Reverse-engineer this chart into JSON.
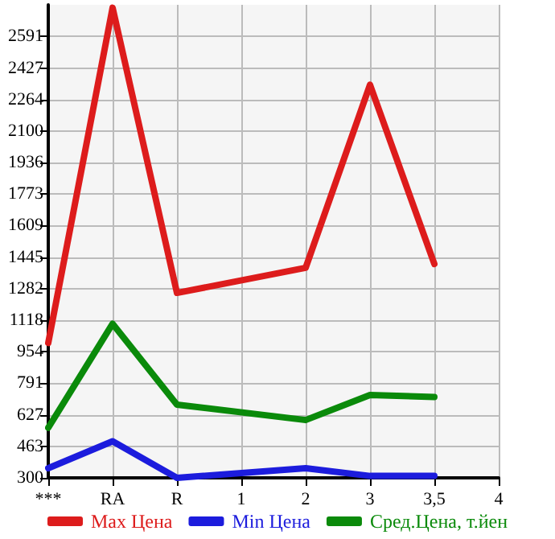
{
  "chart_data": {
    "type": "line",
    "categories": [
      "***",
      "RA",
      "R",
      "1",
      "2",
      "3",
      "3,5",
      "4"
    ],
    "series": [
      {
        "name": "Max Цена",
        "color": "#dd1c1c",
        "values": [
          1000,
          2740,
          1260,
          null,
          1390,
          2340,
          1410,
          null
        ]
      },
      {
        "name": "Min Цена",
        "color": "#1c1cdd",
        "values": [
          350,
          490,
          300,
          null,
          350,
          310,
          310,
          null
        ]
      },
      {
        "name": "Сред.Цена, т.йен",
        "color": "#0a8a0a",
        "values": [
          560,
          1100,
          680,
          null,
          600,
          730,
          720,
          null
        ]
      }
    ],
    "ylim": [
      300,
      2755
    ],
    "yticks": [
      300,
      463,
      627,
      791,
      954,
      1118,
      1282,
      1445,
      1609,
      1773,
      1936,
      2100,
      2264,
      2427,
      2591
    ],
    "grid": true,
    "legend": "bottom",
    "marker": "none",
    "line_style": "solid"
  }
}
